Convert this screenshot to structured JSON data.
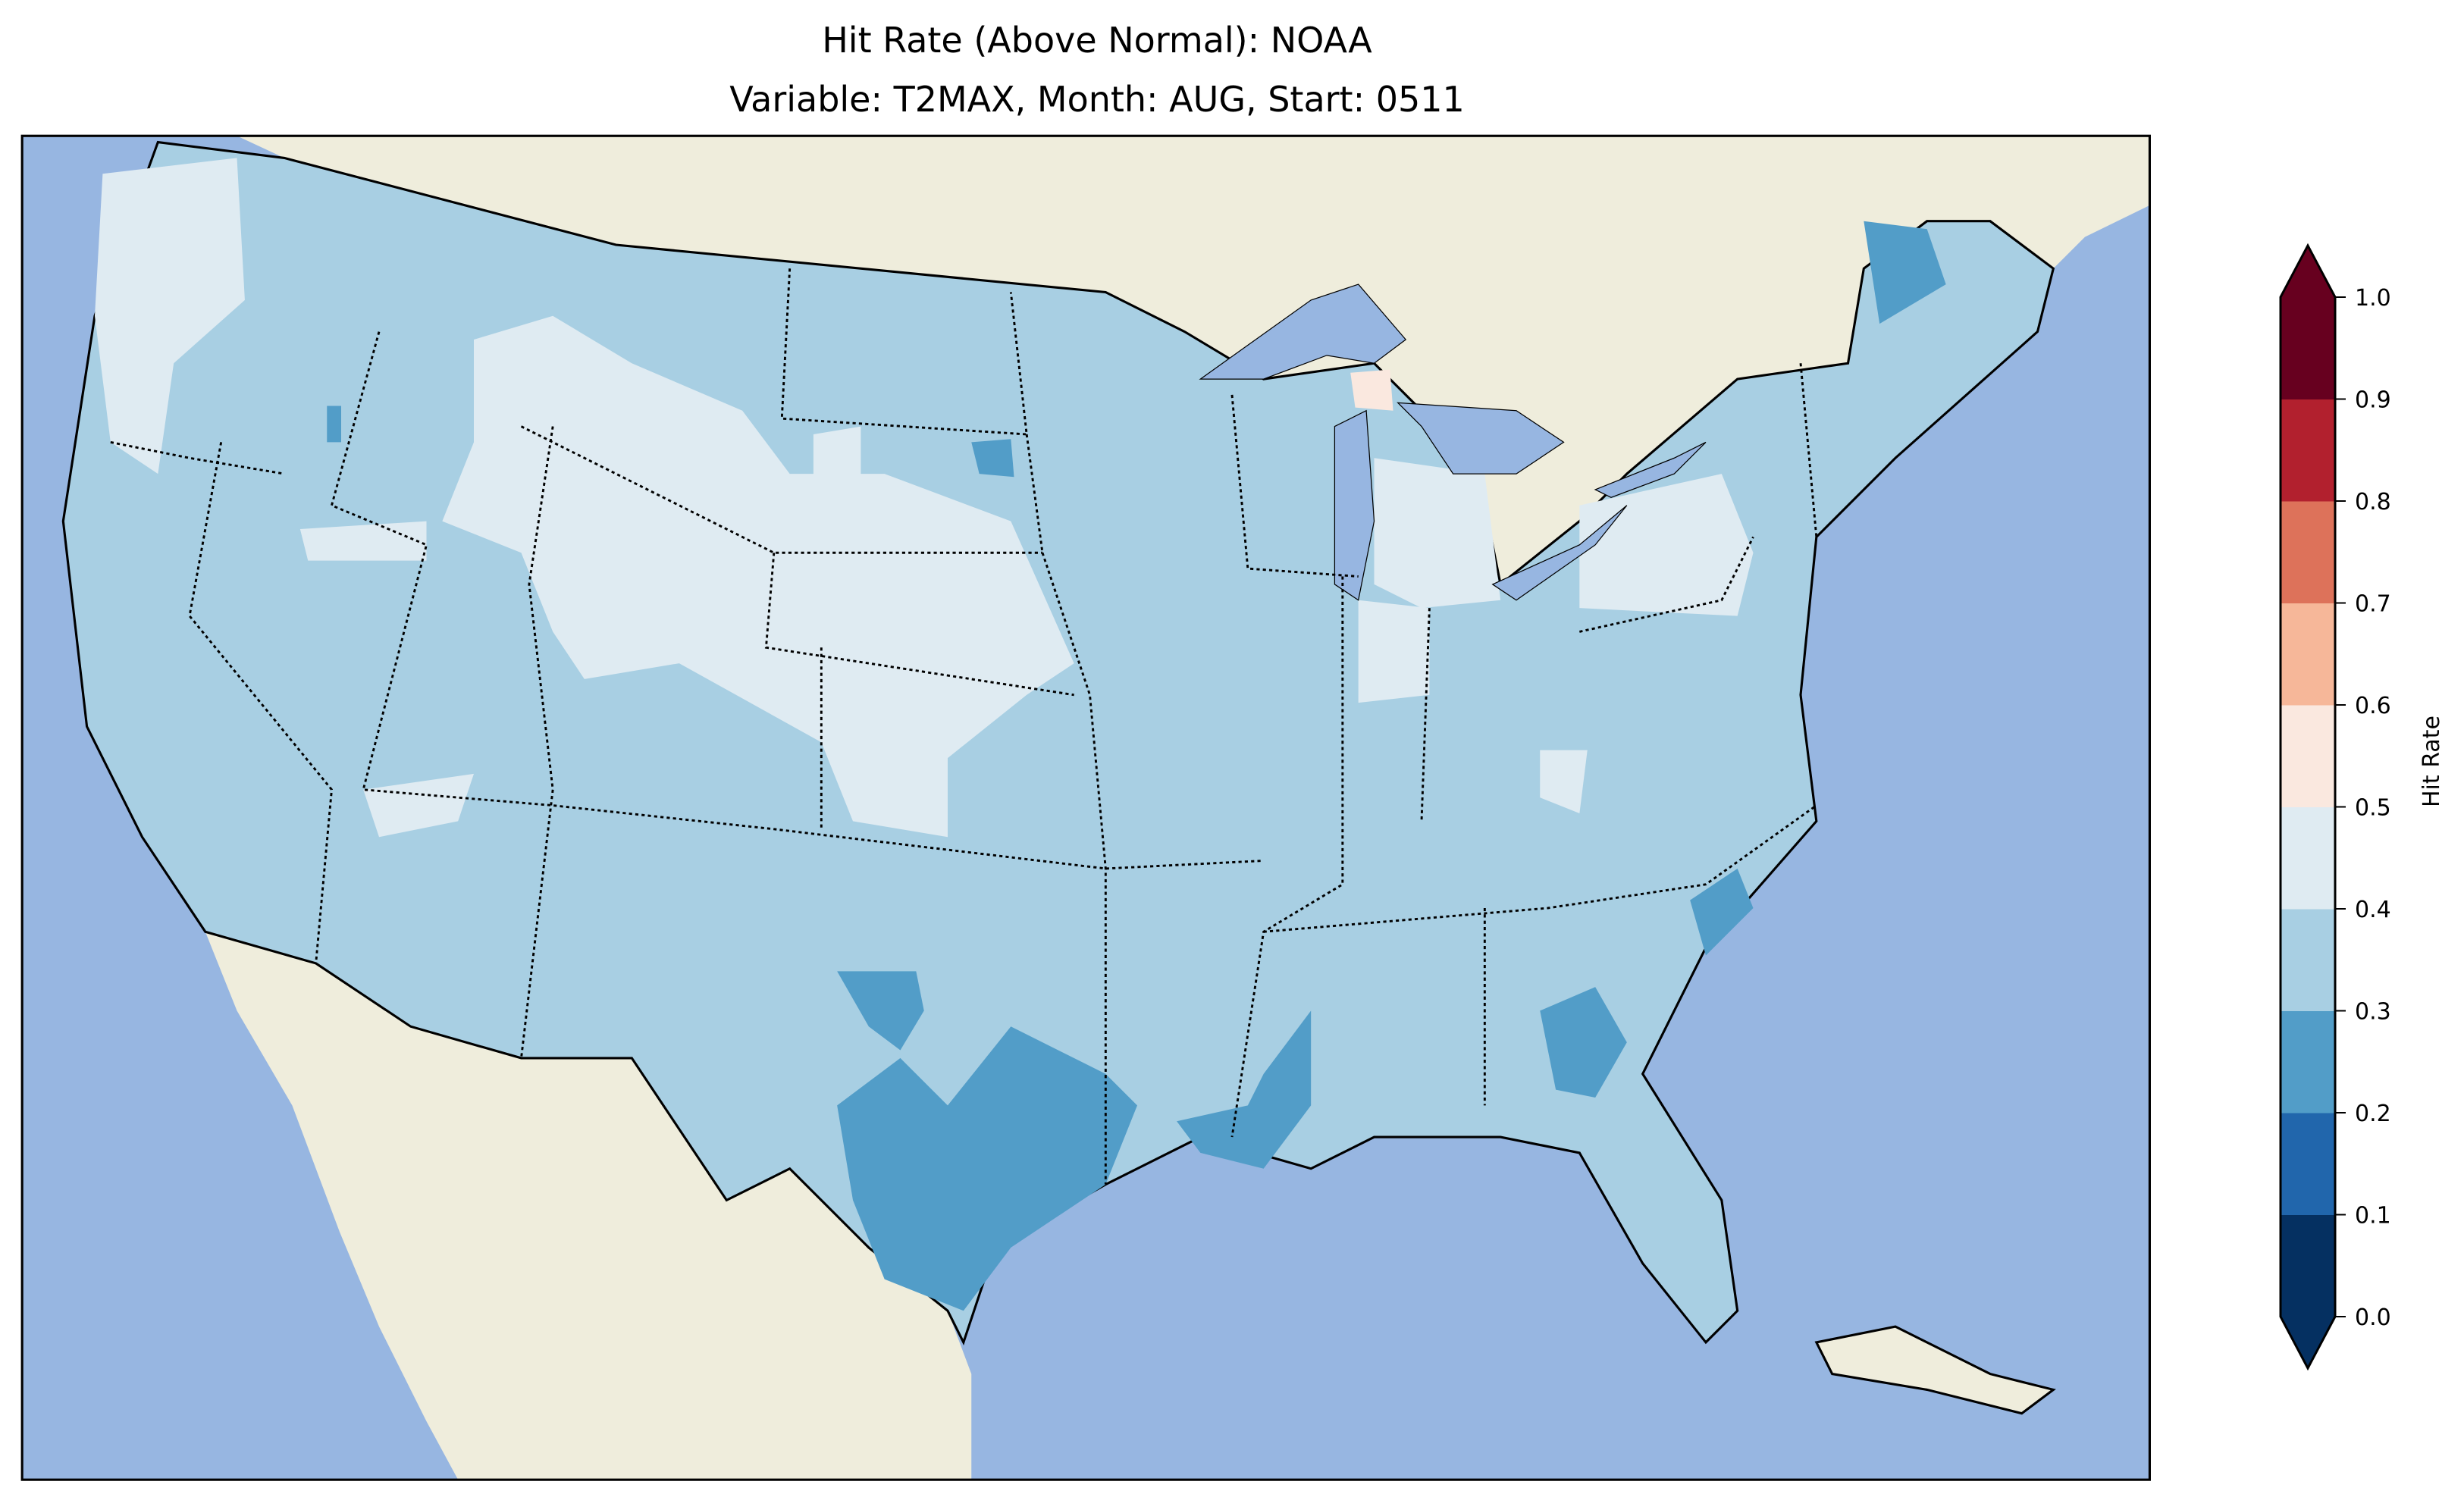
{
  "title": {
    "line1": "Hit Rate (Above Normal): NOAA",
    "line2": "Variable: T2MAX, Month: AUG, Start: 0511"
  },
  "map": {
    "region": "Contiguous United States",
    "colors": {
      "ocean": "#97b6e1",
      "land": "#efeddc",
      "border": "#000000"
    },
    "dominant_bin": "0.3-0.4",
    "regions_by_bin": {
      "0.5-0.6": [
        "Upper Peninsula of Michigan (small patch)"
      ],
      "0.4-0.5": [
        "Western Washington/Oregon coast",
        "Wyoming",
        "Nebraska",
        "NE Colorado",
        "SW Kansas/Oklahoma panhandle",
        "Michigan",
        "New York/Pennsylvania",
        "N Nevada",
        "Indiana"
      ],
      "0.3-0.4": [
        "Most of the CONUS"
      ],
      "0.2-0.3": [
        "Texas",
        "Louisiana",
        "Mississippi",
        "Georgia",
        "North Carolina coast",
        "Maine",
        "NE South Dakota patch"
      ]
    }
  },
  "colorbar": {
    "label": "Hit Rate",
    "ticks": [
      "0.0",
      "0.1",
      "0.2",
      "0.3",
      "0.4",
      "0.5",
      "0.6",
      "0.7",
      "0.8",
      "0.9",
      "1.0"
    ],
    "bins": [
      {
        "range": [
          0.0,
          0.1
        ],
        "color": "#053061"
      },
      {
        "range": [
          0.1,
          0.2
        ],
        "color": "#2166ac"
      },
      {
        "range": [
          0.2,
          0.3
        ],
        "color": "#529dc8"
      },
      {
        "range": [
          0.3,
          0.4
        ],
        "color": "#a8cfe3"
      },
      {
        "range": [
          0.4,
          0.5
        ],
        "color": "#dfebf2"
      },
      {
        "range": [
          0.5,
          0.6
        ],
        "color": "#fae8df"
      },
      {
        "range": [
          0.6,
          0.7
        ],
        "color": "#f6b799"
      },
      {
        "range": [
          0.7,
          0.8
        ],
        "color": "#dd725a"
      },
      {
        "range": [
          0.8,
          0.9
        ],
        "color": "#b2202e"
      },
      {
        "range": [
          0.9,
          1.0
        ],
        "color": "#67001f"
      }
    ],
    "extend": "both"
  }
}
